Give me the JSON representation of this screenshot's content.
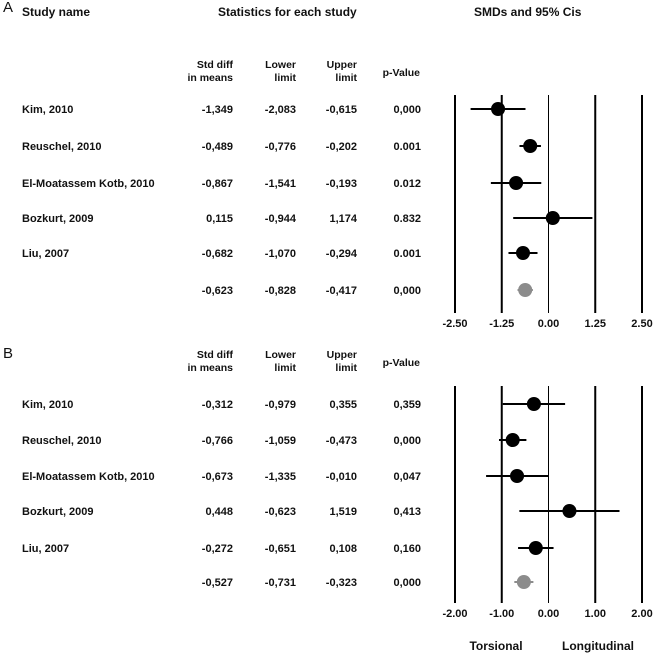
{
  "headers": {
    "study_name": "Study name",
    "statistics": "Statistics for each study",
    "smds": "SMDs  and 95% Cis"
  },
  "columns": {
    "smd_line1": "Std diff",
    "smd_line2": "in means",
    "lower_line1": "Lower",
    "lower_line2": "limit",
    "upper_line1": "Upper",
    "upper_line2": "limit",
    "pvalue": "p-Value"
  },
  "colors": {
    "study_marker": "#000000",
    "pooled_marker": "#8c8c8c",
    "axis": "#000000"
  },
  "chart_data": [
    {
      "panel_label": "A",
      "type": "forest",
      "xlim": [
        -2.5,
        2.5
      ],
      "ticks": [
        -2.5,
        -1.25,
        0.0,
        1.25,
        2.5
      ],
      "tick_labels": [
        "-2.50",
        "-1.25",
        "0.00",
        "1.25",
        "2.50"
      ],
      "rows": [
        {
          "study": "Kim, 2010",
          "smd": -1.349,
          "lower": -2.083,
          "upper": -0.615,
          "p": "0,000",
          "smd_text": "-1,349",
          "lower_text": "-2,083",
          "upper_text": "-0,615"
        },
        {
          "study": "Reuschel, 2010",
          "smd": -0.489,
          "lower": -0.776,
          "upper": -0.202,
          "p": "0.001",
          "smd_text": "-0,489",
          "lower_text": "-0,776",
          "upper_text": "-0,202"
        },
        {
          "study": "El-Moatassem Kotb, 2010",
          "smd": -0.867,
          "lower": -1.541,
          "upper": -0.193,
          "p": "0.012",
          "smd_text": "-0,867",
          "lower_text": "-1,541",
          "upper_text": "-0,193"
        },
        {
          "study": "Bozkurt, 2009",
          "smd": 0.115,
          "lower": -0.944,
          "upper": 1.174,
          "p": "0.832",
          "smd_text": "0,115",
          "lower_text": "-0,944",
          "upper_text": "1,174"
        },
        {
          "study": "Liu, 2007",
          "smd": -0.682,
          "lower": -1.07,
          "upper": -0.294,
          "p": "0.001",
          "smd_text": "-0,682",
          "lower_text": "-1,070",
          "upper_text": "-0,294"
        }
      ],
      "pooled": {
        "smd": -0.623,
        "lower": -0.828,
        "upper": -0.417,
        "p": "0,000",
        "smd_text": "-0,623",
        "lower_text": "-0,828",
        "upper_text": "-0,417"
      }
    },
    {
      "panel_label": "B",
      "type": "forest",
      "xlim": [
        -2.0,
        2.0
      ],
      "ticks": [
        -2.0,
        -1.0,
        0.0,
        1.0,
        2.0
      ],
      "tick_labels": [
        "-2.00",
        "-1.00",
        "0.00",
        "1.00",
        "2.00"
      ],
      "rows": [
        {
          "study": "Kim, 2010",
          "smd": -0.312,
          "lower": -0.979,
          "upper": 0.355,
          "p": "0,359",
          "smd_text": "-0,312",
          "lower_text": "-0,979",
          "upper_text": "0,355"
        },
        {
          "study": "Reuschel, 2010",
          "smd": -0.766,
          "lower": -1.059,
          "upper": -0.473,
          "p": "0,000",
          "smd_text": "-0,766",
          "lower_text": "-1,059",
          "upper_text": "-0,473"
        },
        {
          "study": "El-Moatassem Kotb, 2010",
          "smd": -0.673,
          "lower": -1.335,
          "upper": -0.01,
          "p": "0,047",
          "smd_text": "-0,673",
          "lower_text": "-1,335",
          "upper_text": "-0,010"
        },
        {
          "study": "Bozkurt, 2009",
          "smd": 0.448,
          "lower": -0.623,
          "upper": 1.519,
          "p": "0,413",
          "smd_text": "0,448",
          "lower_text": "-0,623",
          "upper_text": "1,519"
        },
        {
          "study": "Liu, 2007",
          "smd": -0.272,
          "lower": -0.651,
          "upper": 0.108,
          "p": "0,160",
          "smd_text": "-0,272",
          "lower_text": "-0,651",
          "upper_text": "0,108"
        }
      ],
      "pooled": {
        "smd": -0.527,
        "lower": -0.731,
        "upper": -0.323,
        "p": "0,000",
        "smd_text": "-0,527",
        "lower_text": "-0,731",
        "upper_text": "-0,323"
      },
      "direction_labels": {
        "left": "Torsional",
        "right": "Longitudinal"
      }
    }
  ]
}
